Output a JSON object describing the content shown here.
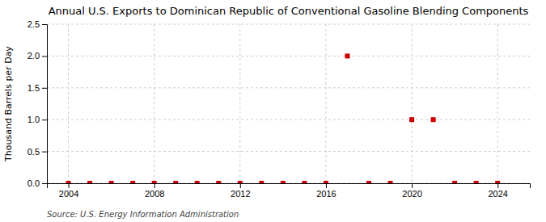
{
  "chart_data": {
    "type": "scatter",
    "title": "Annual U.S. Exports to Dominican Republic of Conventional Gasoline Blending Components",
    "y_label": "Thousand Barrels per Day",
    "source": "Source: U.S. Energy Information Administration",
    "x": [
      2004,
      2005,
      2006,
      2007,
      2008,
      2009,
      2010,
      2011,
      2012,
      2013,
      2014,
      2015,
      2016,
      2017,
      2018,
      2019,
      2020,
      2021,
      2022,
      2023,
      2024
    ],
    "values": [
      0,
      0,
      0,
      0,
      0,
      0,
      0,
      0,
      0,
      0,
      0,
      0,
      0,
      2.0,
      0,
      0,
      1.0,
      1.0,
      0,
      0,
      0
    ],
    "color": "#cc0000",
    "marker": "square",
    "xlim": [
      2003.0,
      2025.5
    ],
    "xticks": [
      2004,
      2008,
      2012,
      2016,
      2020,
      2024
    ],
    "ylim": [
      0.0,
      2.5
    ],
    "yticks": [
      {
        "value": 0,
        "label": "0.0"
      },
      0.5,
      {
        "value": 1,
        "label": "1.0"
      },
      1.5,
      {
        "value": 2,
        "label": "2.0"
      },
      2.5
    ],
    "grid": true
  }
}
